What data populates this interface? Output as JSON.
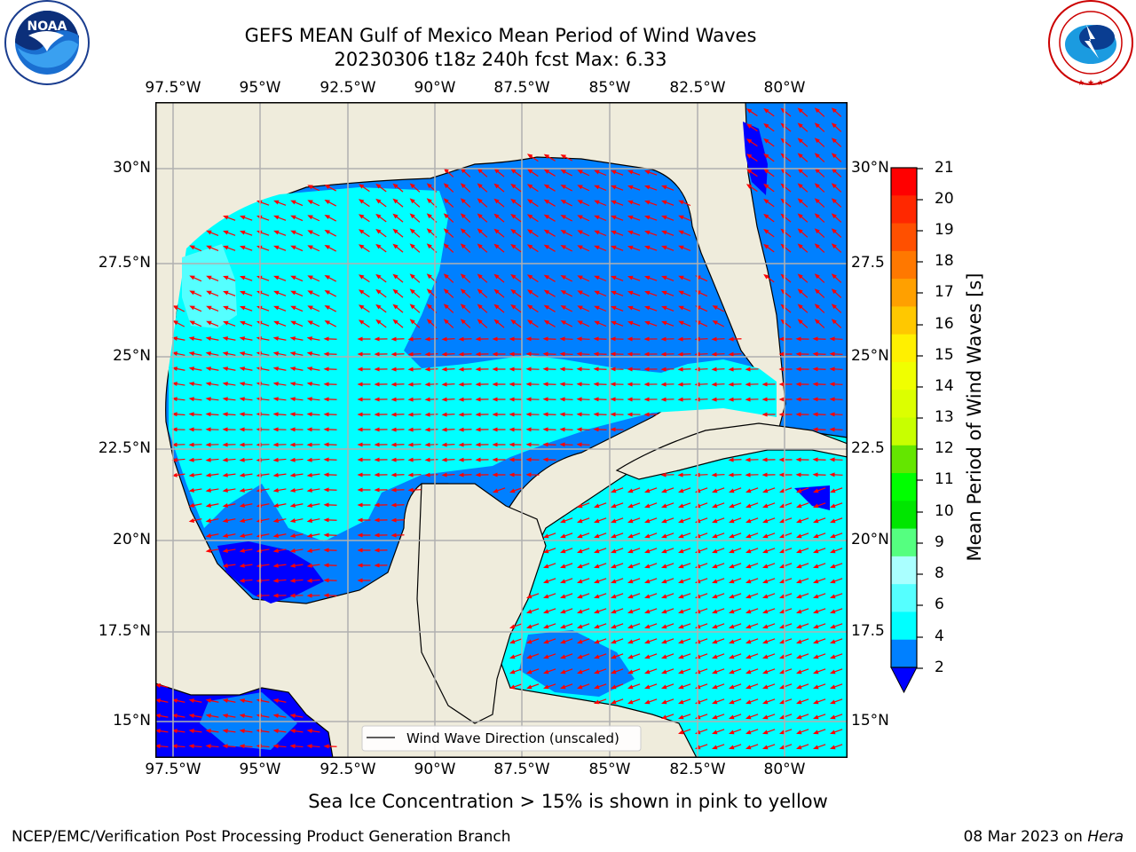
{
  "title": {
    "line1": "GEFS MEAN Gulf of Mexico Mean Period of Wind Waves",
    "line2": "20230306 t18z 240h fcst   Max: 6.33"
  },
  "logos": {
    "noaa_text": "NOAA",
    "noaa_ring": "NATIONAL OCEANIC AND ATMOSPHERIC ADMINISTRATION  •  U.S. DEPARTMENT OF COMMERCE",
    "nws_ring": "NATIONAL WEATHER SERVICE"
  },
  "map": {
    "lon_ticks": [
      "97.5°W",
      "95°W",
      "92.5°W",
      "90°W",
      "87.5°W",
      "85°W",
      "82.5°W",
      "80°W"
    ],
    "lat_ticks_left": [
      "30°N",
      "27.5°N",
      "25°N",
      "22.5°N",
      "20°N",
      "17.5°N",
      "15°N"
    ],
    "lat_ticks_right": [
      "30°N",
      "27.5",
      "25°N",
      "22.5",
      "20°N",
      "17.5",
      "15°N"
    ],
    "legend_label": "Wind Wave Direction (unscaled)",
    "colors": {
      "land": "#efecdc",
      "period_2_4": "#0080ff",
      "period_below_2": "#0000ff",
      "period_4_6": "#00ffff",
      "period_6_8": "#55ffff",
      "arrows": "#ff0000",
      "grid": "#b0b0b0"
    }
  },
  "colorbar": {
    "label": "Mean Period of Wind Waves [s]",
    "ticks": [
      "21",
      "20",
      "19",
      "18",
      "17",
      "16",
      "15",
      "14",
      "13",
      "12",
      "11",
      "10",
      "9",
      "8",
      "6",
      "4",
      "2"
    ],
    "colors_top_to_bottom": [
      "#ff0000",
      "#ff2800",
      "#ff5000",
      "#ff7800",
      "#ffa000",
      "#ffc800",
      "#fff000",
      "#f0ff00",
      "#dcff00",
      "#c8ff00",
      "#64e600",
      "#00ff00",
      "#00e600",
      "#55ff80",
      "#aaffff",
      "#55ffff",
      "#00ffff",
      "#0080ff"
    ],
    "extend_color": "#0000ff"
  },
  "footer": {
    "subtitle": "Sea Ice Concentration > 15% is shown in pink to yellow",
    "credit": "NCEP/EMC/Verification Post Processing Product Generation Branch",
    "date": "08 Mar 2023 on",
    "machine": "Hera"
  }
}
